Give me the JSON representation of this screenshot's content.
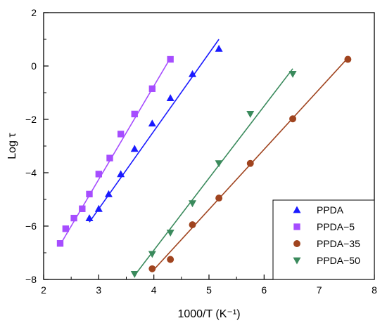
{
  "chart_data": {
    "type": "scatter",
    "xlabel": "1000/T (K⁻¹)",
    "ylabel": "Log τ",
    "xlim": [
      2,
      8
    ],
    "ylim": [
      -8,
      2
    ],
    "xticks": [
      2,
      3,
      4,
      5,
      6,
      7,
      8
    ],
    "yticks": [
      -8,
      -6,
      -4,
      -2,
      0,
      2
    ],
    "grid": false,
    "legend_position": "bottom-right",
    "series": [
      {
        "name": "PPDA",
        "marker": "triangle-up",
        "color": "#1a1aff",
        "points": [
          [
            2.83,
            -5.7
          ],
          [
            3.0,
            -5.35
          ],
          [
            3.18,
            -4.8
          ],
          [
            3.4,
            -4.05
          ],
          [
            3.65,
            -3.1
          ],
          [
            3.97,
            -2.15
          ],
          [
            4.3,
            -1.2
          ],
          [
            4.7,
            -0.3
          ],
          [
            5.18,
            0.65
          ]
        ],
        "fit": [
          [
            2.83,
            -5.85
          ],
          [
            5.18,
            1.0
          ]
        ]
      },
      {
        "name": "PPDA-5",
        "marker": "square",
        "color": "#a64dff",
        "points": [
          [
            2.3,
            -6.65
          ],
          [
            2.4,
            -6.1
          ],
          [
            2.55,
            -5.7
          ],
          [
            2.7,
            -5.35
          ],
          [
            2.83,
            -4.8
          ],
          [
            3.0,
            -4.05
          ],
          [
            3.2,
            -3.45
          ],
          [
            3.4,
            -2.55
          ],
          [
            3.65,
            -1.8
          ],
          [
            3.97,
            -0.85
          ],
          [
            4.3,
            0.25
          ]
        ],
        "fit": [
          [
            2.3,
            -6.7
          ],
          [
            4.3,
            0.3
          ]
        ]
      },
      {
        "name": "PPDA-35",
        "marker": "circle",
        "color": "#a0441f",
        "points": [
          [
            3.97,
            -7.6
          ],
          [
            4.3,
            -7.25
          ],
          [
            4.7,
            -5.95
          ],
          [
            5.18,
            -4.95
          ],
          [
            5.75,
            -3.65
          ],
          [
            6.52,
            -1.98
          ],
          [
            7.52,
            0.25
          ]
        ],
        "fit": [
          [
            3.97,
            -7.7
          ],
          [
            7.52,
            0.3
          ]
        ]
      },
      {
        "name": "PPDA-50",
        "marker": "triangle-down",
        "color": "#3a8a5c",
        "points": [
          [
            3.65,
            -7.8
          ],
          [
            3.97,
            -7.05
          ],
          [
            4.3,
            -6.25
          ],
          [
            4.7,
            -5.15
          ],
          [
            5.18,
            -3.65
          ],
          [
            5.75,
            -1.8
          ],
          [
            6.52,
            -0.3
          ]
        ],
        "fit": [
          [
            3.65,
            -7.85
          ],
          [
            6.52,
            -0.1
          ]
        ]
      }
    ]
  }
}
